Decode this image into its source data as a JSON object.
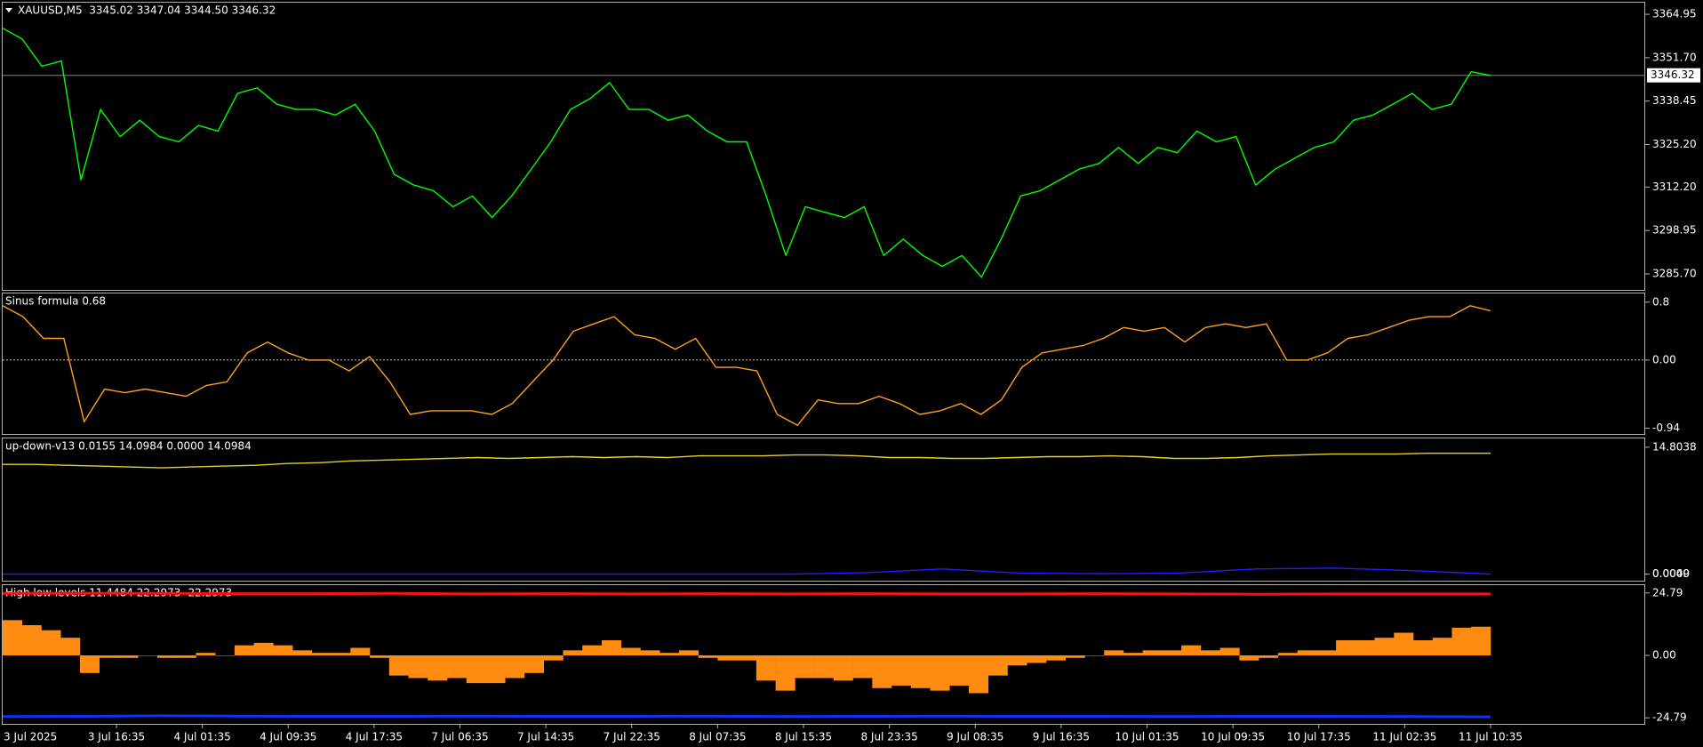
{
  "chart_data": [
    {
      "type": "line",
      "title": "XAUUSD,M5  3345.02 3347.04 3344.50 3346.32",
      "ylim": [
        3280.8,
        3368.5
      ],
      "yticks": [
        3364.95,
        {
          "value": 3351.7,
          "label": "3351.70"
        },
        3338.45,
        {
          "value": 3325.2,
          "label": "3325.20"
        },
        {
          "value": 3312.2,
          "label": "3312.20"
        },
        3298.95,
        {
          "value": 3285.7,
          "label": "3285.70"
        }
      ],
      "current_price": 3346.32,
      "series": [
        {
          "color": "#00ff00",
          "type": "line",
          "values": [
            3360.7,
            3357.4,
            3349.1,
            3350.7,
            3314.4,
            3335.9,
            3327.6,
            3332.6,
            3327.6,
            3326,
            3331,
            3329.3,
            3340.8,
            3342.5,
            3337.5,
            3335.9,
            3335.9,
            3334.2,
            3337.5,
            3329.3,
            3316.1,
            3312.8,
            3311.1,
            3306.2,
            3309.5,
            3302.9,
            3309.5,
            3317.7,
            3326,
            3335.9,
            3339.2,
            3344.1,
            3335.9,
            3335.9,
            3332.6,
            3334.2,
            3329.3,
            3326,
            3326,
            3309.5,
            3291.3,
            3306.2,
            3304.5,
            3302.9,
            3306.2,
            3291.3,
            3296.3,
            3291.3,
            3288,
            3291.3,
            3284.7,
            3296.3,
            3309.5,
            3311.1,
            3314.4,
            3317.7,
            3319.4,
            3324.3,
            3319.4,
            3324.3,
            3322.7,
            3329.3,
            3326,
            3327.6,
            3312.8,
            3317.7,
            3321,
            3324.3,
            3326,
            3332.6,
            3334.2,
            3337.5,
            3340.8,
            3335.9,
            3337.5,
            3347.4,
            3346.3
          ]
        }
      ]
    },
    {
      "type": "line",
      "title": "Sinus formula 0.68",
      "ylim": [
        -1.02,
        0.92
      ],
      "yticks": [
        0.8,
        {
          "value": 0,
          "label": "0.00"
        },
        -0.94
      ],
      "zero_line": true,
      "series": [
        {
          "color": "#ffa020",
          "type": "line",
          "values": [
            0.75,
            0.6,
            0.3,
            0.3,
            -0.85,
            -0.4,
            -0.45,
            -0.4,
            -0.45,
            -0.5,
            -0.35,
            -0.3,
            0.1,
            0.25,
            0.1,
            0.0,
            0.0,
            -0.15,
            0.05,
            -0.3,
            -0.75,
            -0.7,
            -0.7,
            -0.7,
            -0.75,
            -0.6,
            -0.3,
            0.0,
            0.4,
            0.5,
            0.6,
            0.35,
            0.3,
            0.15,
            0.3,
            -0.1,
            -0.1,
            -0.15,
            -0.75,
            -0.9,
            -0.55,
            -0.6,
            -0.6,
            -0.5,
            -0.6,
            -0.75,
            -0.7,
            -0.6,
            -0.75,
            -0.55,
            -0.1,
            0.1,
            0.15,
            0.2,
            0.3,
            0.45,
            0.4,
            0.45,
            0.25,
            0.45,
            0.5,
            0.45,
            0.5,
            0.0,
            0.0,
            0.1,
            0.3,
            0.35,
            0.45,
            0.55,
            0.6,
            0.6,
            0.75,
            0.68
          ]
        }
      ]
    },
    {
      "type": "line",
      "title": "up-down-v13 0.0155 14.0984 0.0000 14.0984",
      "ylim": [
        -0.77,
        15.83
      ],
      "yticks": [
        14.8038,
        0.0049,
        {
          "value": 0,
          "label": "0.0000"
        }
      ],
      "series": [
        {
          "color": "#e8d020",
          "type": "line",
          "values": [
            12.8,
            12.8,
            12.7,
            12.6,
            12.5,
            12.4,
            12.5,
            12.6,
            12.7,
            12.9,
            13.0,
            13.2,
            13.3,
            13.4,
            13.5,
            13.6,
            13.5,
            13.6,
            13.7,
            13.6,
            13.7,
            13.6,
            13.8,
            13.8,
            13.8,
            13.9,
            13.9,
            13.8,
            13.6,
            13.6,
            13.5,
            13.5,
            13.6,
            13.7,
            13.7,
            13.8,
            13.7,
            13.5,
            13.5,
            13.6,
            13.8,
            13.9,
            14.0,
            14.0,
            14.0,
            14.1,
            14.1,
            14.1
          ]
        },
        {
          "color": "#2020ff",
          "type": "line",
          "values": [
            0,
            0,
            0,
            0,
            0,
            0,
            0,
            0,
            0,
            0,
            0,
            0.15,
            0.6,
            0.1,
            0.05,
            0.1,
            0.6,
            0.7,
            0.4,
            0
          ]
        }
      ]
    },
    {
      "type": "bar",
      "title": "High low levels 11.4484 22.2973 -22.2973",
      "ylim": [
        -27.2,
        27.9
      ],
      "yticks": [
        24.79,
        {
          "value": 0,
          "label": "0.00"
        },
        -24.79
      ],
      "xtick_labels": [
        "3 Jul 2025",
        "3 Jul 16:35",
        "4 Jul 01:35",
        "4 Jul 09:35",
        "4 Jul 17:35",
        "7 Jul 06:35",
        "7 Jul 14:35",
        "7 Jul 22:35",
        "8 Jul 07:35",
        "8 Jul 15:35",
        "8 Jul 23:35",
        "9 Jul 08:35",
        "9 Jul 16:35",
        "10 Jul 01:35",
        "10 Jul 09:35",
        "10 Jul 17:35",
        "11 Jul 02:35",
        "11 Jul 10:35"
      ],
      "series": [
        {
          "color": "#ff8c10",
          "type": "bar",
          "values": [
            14,
            12,
            10,
            7,
            -7,
            -1,
            -1,
            0,
            -1,
            -1,
            1,
            0,
            4,
            5,
            4,
            2,
            1,
            1,
            3,
            -1,
            -8,
            -9,
            -10,
            -9,
            -11,
            -11,
            -9,
            -7,
            -2,
            2,
            4,
            6,
            3,
            2,
            1,
            2,
            -1,
            -2,
            -2,
            -10,
            -14,
            -9,
            -9,
            -10,
            -9,
            -13,
            -12,
            -13,
            -14,
            -12,
            -15,
            -8,
            -4,
            -3,
            -2,
            -1,
            0,
            2,
            1,
            2,
            2,
            4,
            2,
            3,
            -2,
            -1,
            1,
            2,
            2,
            6,
            6,
            7,
            9,
            6,
            7,
            11,
            11.4
          ]
        },
        {
          "color": "#ff1010",
          "type": "line",
          "values": [
            24.6,
            24.7,
            24.6,
            24.5,
            24.5,
            24.6,
            24.4,
            24.5,
            24.4,
            24.5,
            24.4,
            24.5,
            24.4,
            24.4,
            24.5,
            24.4,
            24.3,
            24.4,
            24.4,
            24.4
          ]
        },
        {
          "color": "#1030ff",
          "type": "line",
          "values": [
            -24.3,
            -24.2,
            -24.0,
            -24.1,
            -24.2,
            -24.2,
            -24.1,
            -24.2,
            -24.2,
            -24.1,
            -24.3,
            -24.2,
            -24.1,
            -24.2,
            -24.2,
            -24.3,
            -24.2,
            -24.2,
            -24.3,
            -24.4
          ]
        }
      ]
    }
  ]
}
